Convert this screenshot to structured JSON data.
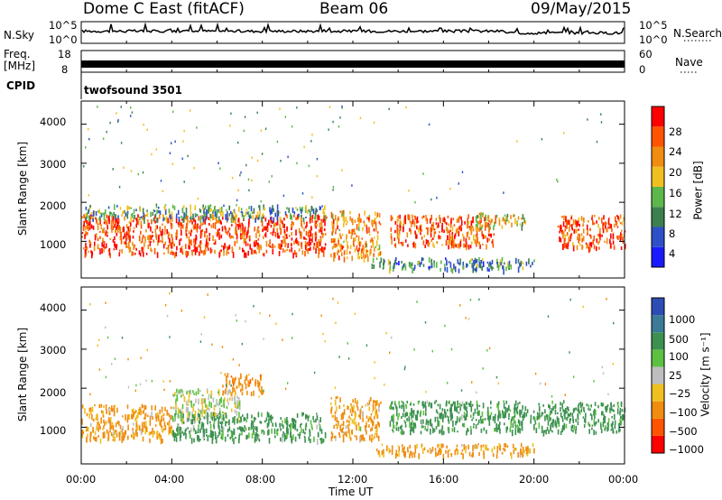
{
  "header": {
    "station": "Dome C East (fitACF)",
    "beam": "Beam 06",
    "date": "09/May/2015"
  },
  "strips": {
    "nsky_label": "N.Sky",
    "nsky_ticks": [
      "10^5",
      "10^0"
    ],
    "nsearch_label": "N.Search",
    "nsearch_ticks": [
      "10^5",
      "10^0"
    ],
    "freq_label_top": "Freq.",
    "freq_label_bottom": "[MHz]",
    "freq_ticks": [
      "18",
      "8"
    ],
    "nave_label": "Nave",
    "nave_ticks": [
      "60",
      "0"
    ],
    "cpid_label": "CPID",
    "cpid_value": "twofsound 3501"
  },
  "colors": {
    "power": [
      "#1a1aff",
      "#2d50c8",
      "#3c8050",
      "#5cb84a",
      "#f0c020",
      "#f08c10",
      "#ff5500",
      "#ff0000"
    ],
    "velocity": [
      "#ff0000",
      "#ff5500",
      "#f08c10",
      "#f0c020",
      "#bebebe",
      "#5cc040",
      "#3c9050",
      "#3c7a9a",
      "#2d4cb4"
    ]
  },
  "chart_data": [
    {
      "type": "heatmap",
      "panel": "power",
      "ylabel": "Slant Range [km]",
      "ylim": [
        200,
        4500
      ],
      "yticks": [
        "4000",
        "3000",
        "2000",
        "1000"
      ],
      "colorbar_label": "Power [dB]",
      "colorbar_ticks": [
        "28",
        "24",
        "20",
        "16",
        "12",
        "8",
        "4"
      ],
      "colorbar_range": [
        0,
        32
      ],
      "regions": [
        {
          "t0": 0.0,
          "t1": 10.8,
          "r0": 700,
          "r1": 1700,
          "value": 27
        },
        {
          "t0": 0.0,
          "t1": 10.8,
          "r0": 1600,
          "r1": 1950,
          "value": 12
        },
        {
          "t0": 11.0,
          "t1": 13.2,
          "r0": 600,
          "r1": 1800,
          "value": 22
        },
        {
          "t0": 13.6,
          "t1": 18.2,
          "r0": 900,
          "r1": 1700,
          "value": 26
        },
        {
          "t0": 17.4,
          "t1": 19.6,
          "r0": 1350,
          "r1": 1750,
          "value": 18
        },
        {
          "t0": 21.0,
          "t1": 24.0,
          "r0": 850,
          "r1": 1700,
          "value": 26
        },
        {
          "t0": 12.8,
          "t1": 20.0,
          "r0": 300,
          "r1": 600,
          "value": 10
        }
      ]
    },
    {
      "type": "heatmap",
      "panel": "velocity",
      "ylabel": "Slant Range [km]",
      "ylim": [
        200,
        4500
      ],
      "yticks": [
        "4000",
        "3000",
        "2000",
        "1000"
      ],
      "xlabel": "Time UT",
      "xticks": [
        "00:00",
        "04:00",
        "08:00",
        "12:00",
        "16:00",
        "20:00",
        "00:00"
      ],
      "xlim": [
        0,
        24
      ],
      "colorbar_label": "Velocity [m s⁻¹]",
      "colorbar_ticks": [
        "1000",
        "500",
        "100",
        "25",
        "−25",
        "−100",
        "−500",
        "−1000"
      ],
      "regions": [
        {
          "t0": 0.0,
          "t1": 4.0,
          "r0": 700,
          "r1": 1600,
          "value": -150
        },
        {
          "t0": 4.0,
          "t1": 7.0,
          "r0": 1200,
          "r1": 2000,
          "value": 0
        },
        {
          "t0": 4.0,
          "t1": 10.8,
          "r0": 700,
          "r1": 1400,
          "value": 200
        },
        {
          "t0": 6.2,
          "t1": 8.0,
          "r0": 1900,
          "r1": 2400,
          "value": -300
        },
        {
          "t0": 11.0,
          "t1": 13.2,
          "r0": 700,
          "r1": 1800,
          "value": -150
        },
        {
          "t0": 13.6,
          "t1": 18.2,
          "r0": 900,
          "r1": 1700,
          "value": 200
        },
        {
          "t0": 18.2,
          "t1": 24.0,
          "r0": 900,
          "r1": 1700,
          "value": 250
        },
        {
          "t0": 13.0,
          "t1": 20.0,
          "r0": 300,
          "r1": 600,
          "value": -150
        }
      ]
    }
  ]
}
